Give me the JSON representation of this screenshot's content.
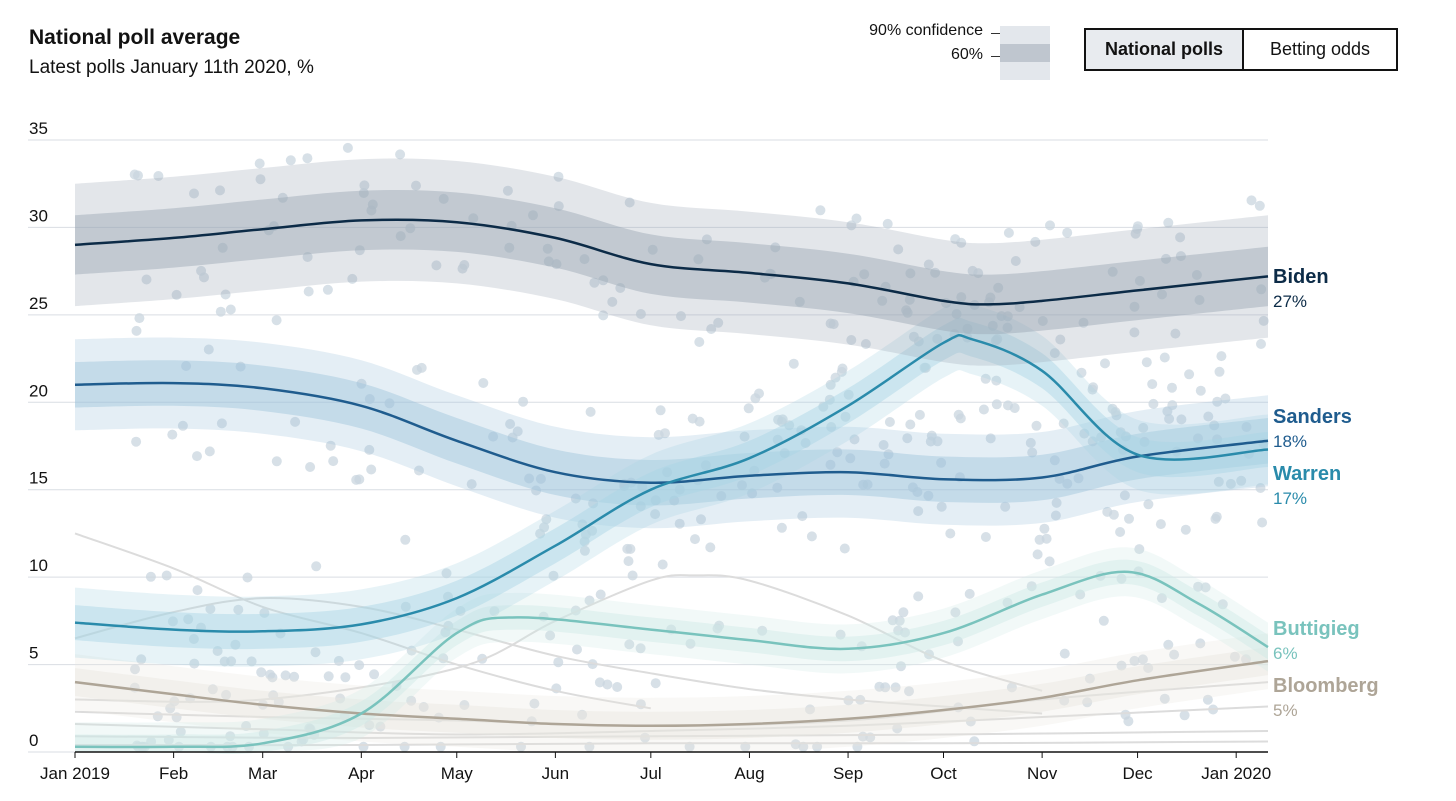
{
  "header": {
    "title": "National poll average",
    "subtitle": "Latest polls January 11th 2020, %"
  },
  "legend": {
    "ci90_label": "90% confidence",
    "ci60_label": "60%"
  },
  "toggle": {
    "tabs": [
      {
        "label": "National polls",
        "active": true
      },
      {
        "label": "Betting odds",
        "active": false
      }
    ]
  },
  "chart_data": {
    "type": "line",
    "title": "National poll average",
    "subtitle": "Latest polls January 11th 2020, %",
    "x_range": [
      "2019-01-01",
      "2020-01-11"
    ],
    "ylim": [
      0,
      35
    ],
    "yticks": [
      0,
      5,
      10,
      15,
      20,
      25,
      30,
      35
    ],
    "xticks": [
      {
        "date": "2019-01-01",
        "label": "Jan 2019"
      },
      {
        "date": "2019-02-01",
        "label": "Feb"
      },
      {
        "date": "2019-03-01",
        "label": "Mar"
      },
      {
        "date": "2019-04-01",
        "label": "Apr"
      },
      {
        "date": "2019-05-01",
        "label": "May"
      },
      {
        "date": "2019-06-01",
        "label": "Jun"
      },
      {
        "date": "2019-07-01",
        "label": "Jul"
      },
      {
        "date": "2019-08-01",
        "label": "Aug"
      },
      {
        "date": "2019-09-01",
        "label": "Sep"
      },
      {
        "date": "2019-10-01",
        "label": "Oct"
      },
      {
        "date": "2019-11-01",
        "label": "Nov"
      },
      {
        "date": "2019-12-01",
        "label": "Dec"
      },
      {
        "date": "2020-01-01",
        "label": "Jan 2020"
      }
    ],
    "grid": true,
    "legend": "end-labels",
    "series": [
      {
        "name": "Biden",
        "label": "27%",
        "color": "#0c2b47",
        "band_color": "#9aa6b4",
        "x": [
          "2019-01-01",
          "2019-02-01",
          "2019-03-01",
          "2019-04-01",
          "2019-05-01",
          "2019-06-01",
          "2019-07-01",
          "2019-08-01",
          "2019-09-01",
          "2019-10-01",
          "2019-10-15",
          "2019-11-01",
          "2019-12-01",
          "2020-01-11"
        ],
        "y": [
          29.0,
          29.4,
          29.9,
          30.4,
          30.3,
          29.4,
          27.9,
          27.4,
          26.8,
          25.8,
          25.6,
          25.8,
          26.4,
          27.2
        ],
        "ci60": 1.7,
        "ci90": 3.5
      },
      {
        "name": "Sanders",
        "label": "18%",
        "color": "#1f5c8e",
        "band_color": "#9ec3dc",
        "x": [
          "2019-01-01",
          "2019-02-01",
          "2019-03-01",
          "2019-04-01",
          "2019-05-01",
          "2019-06-01",
          "2019-07-01",
          "2019-08-01",
          "2019-09-01",
          "2019-10-01",
          "2019-11-01",
          "2019-12-01",
          "2020-01-11"
        ],
        "y": [
          21.0,
          21.1,
          20.8,
          19.8,
          17.8,
          16.0,
          15.4,
          15.8,
          16.0,
          15.6,
          15.7,
          16.9,
          17.8
        ],
        "ci60": 1.3,
        "ci90": 2.6
      },
      {
        "name": "Warren",
        "label": "17%",
        "color": "#2a8bab",
        "band_color": "#a9d4e4",
        "x": [
          "2019-01-01",
          "2019-02-01",
          "2019-03-01",
          "2019-04-01",
          "2019-05-01",
          "2019-06-01",
          "2019-07-01",
          "2019-08-01",
          "2019-09-01",
          "2019-10-01",
          "2019-10-10",
          "2019-11-01",
          "2019-12-01",
          "2020-01-11"
        ],
        "y": [
          7.4,
          7.0,
          6.9,
          7.3,
          8.8,
          11.8,
          15.0,
          16.8,
          19.8,
          23.4,
          23.6,
          21.8,
          17.0,
          17.3
        ],
        "ci60": 1.0,
        "ci90": 2.0
      },
      {
        "name": "Buttigieg",
        "label": "6%",
        "color": "#79c3bd",
        "band_color": "#cfe9e6",
        "x": [
          "2019-01-01",
          "2019-02-01",
          "2019-03-01",
          "2019-04-01",
          "2019-05-01",
          "2019-05-20",
          "2019-07-01",
          "2019-08-01",
          "2019-09-01",
          "2019-10-01",
          "2019-11-01",
          "2019-11-28",
          "2019-12-20",
          "2020-01-11"
        ],
        "y": [
          0.3,
          0.3,
          0.5,
          2.2,
          6.8,
          7.7,
          7.0,
          6.4,
          5.9,
          6.8,
          9.0,
          10.3,
          8.5,
          6.0
        ],
        "ci60": 0.7,
        "ci90": 1.4
      },
      {
        "name": "Bloomberg",
        "label": "5%",
        "color": "#aea597",
        "band_color": "#e9e6df",
        "x": [
          "2019-01-01",
          "2019-02-01",
          "2019-03-01",
          "2019-04-01",
          "2019-05-01",
          "2019-06-01",
          "2019-07-01",
          "2019-08-01",
          "2019-09-01",
          "2019-10-01",
          "2019-11-01",
          "2019-12-01",
          "2020-01-11"
        ],
        "y": [
          4.0,
          3.3,
          2.7,
          2.2,
          1.9,
          1.6,
          1.5,
          1.6,
          1.9,
          2.4,
          3.1,
          4.1,
          5.2
        ],
        "ci60": 0.8,
        "ci90": 1.6
      }
    ],
    "background_lines": [
      {
        "x": [
          "2019-01-01",
          "2019-02-01",
          "2019-03-01",
          "2019-04-01",
          "2019-05-01",
          "2019-06-01",
          "2019-07-01"
        ],
        "y": [
          12.5,
          10.5,
          8.3,
          6.8,
          5.0,
          3.5,
          2.5
        ]
      },
      {
        "x": [
          "2019-01-01",
          "2019-02-01",
          "2019-03-01",
          "2019-04-01",
          "2019-05-01",
          "2019-06-01",
          "2019-07-01",
          "2019-08-01",
          "2019-09-01",
          "2019-10-01",
          "2019-11-01"
        ],
        "y": [
          6.5,
          8.0,
          8.8,
          8.3,
          7.0,
          5.5,
          4.5,
          3.6,
          3.0,
          2.6,
          2.2
        ]
      },
      {
        "x": [
          "2019-01-01",
          "2019-03-01",
          "2019-05-01",
          "2019-06-01",
          "2019-07-01",
          "2019-07-15",
          "2019-08-01",
          "2019-09-01",
          "2019-10-01",
          "2019-11-01"
        ],
        "y": [
          3.0,
          3.0,
          4.8,
          7.5,
          9.8,
          10.1,
          9.8,
          7.8,
          5.2,
          3.5
        ]
      },
      {
        "x": [
          "2019-01-01",
          "2019-03-01",
          "2019-05-01",
          "2019-07-01",
          "2019-09-01",
          "2019-11-01",
          "2020-01-11"
        ],
        "y": [
          2.3,
          2.0,
          1.8,
          1.5,
          1.8,
          3.0,
          4.0
        ]
      },
      {
        "x": [
          "2019-01-01",
          "2019-03-01",
          "2019-05-01",
          "2019-07-01",
          "2019-09-01",
          "2019-11-01",
          "2020-01-11"
        ],
        "y": [
          1.6,
          1.3,
          1.0,
          1.2,
          1.5,
          2.0,
          2.6
        ]
      },
      {
        "x": [
          "2019-01-01",
          "2019-04-01",
          "2019-07-01",
          "2019-10-01",
          "2020-01-11"
        ],
        "y": [
          0.9,
          0.8,
          0.9,
          1.0,
          1.2
        ]
      },
      {
        "x": [
          "2019-01-01",
          "2019-04-01",
          "2019-07-01",
          "2019-10-01",
          "2020-01-11"
        ],
        "y": [
          0.4,
          0.4,
          0.5,
          0.5,
          0.6
        ]
      }
    ]
  }
}
